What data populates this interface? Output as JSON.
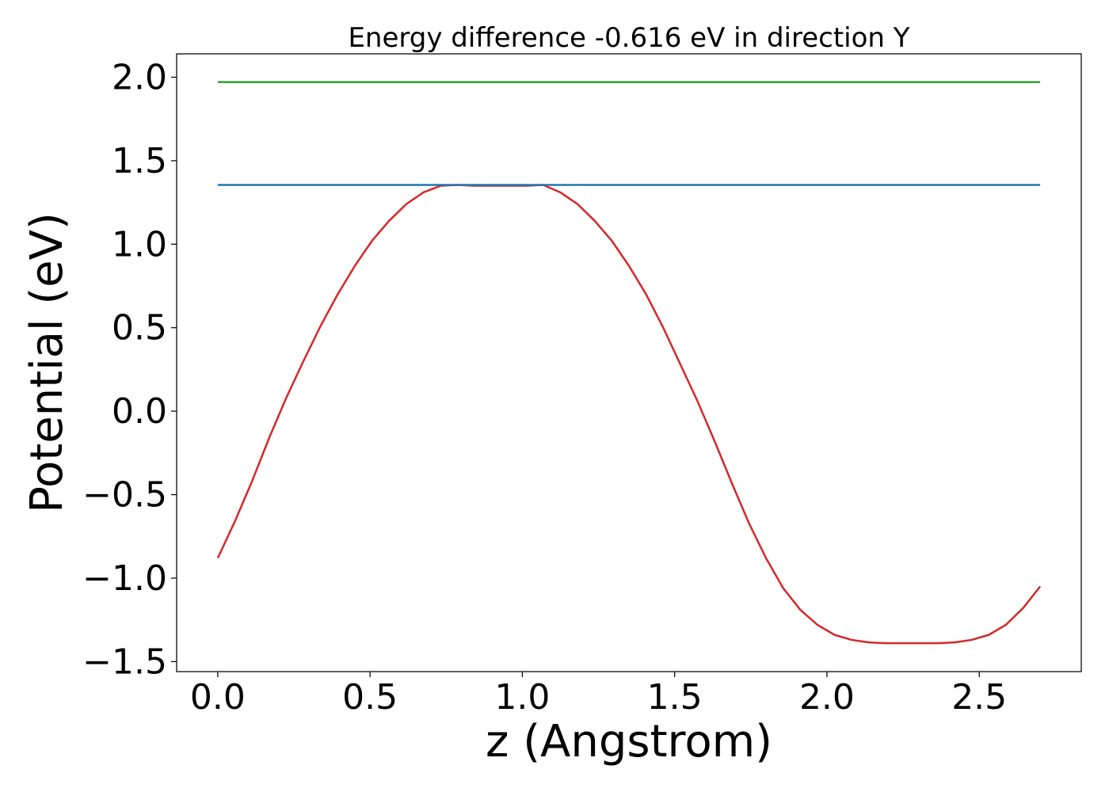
{
  "chart_data": {
    "type": "line",
    "title": "Energy difference -0.616 eV in direction Y",
    "xlabel": "z (Angstrom)",
    "ylabel": "Potential (eV)",
    "xlim": [
      -0.135,
      2.835
    ],
    "ylim": [
      -1.56,
      2.14
    ],
    "xticks": [
      0.0,
      0.5,
      1.0,
      1.5,
      2.0,
      2.5
    ],
    "xtick_labels": [
      "0.0",
      "0.5",
      "1.0",
      "1.5",
      "2.0",
      "2.5"
    ],
    "yticks": [
      -1.5,
      -1.0,
      -0.5,
      0.0,
      0.5,
      1.0,
      1.5,
      2.0
    ],
    "ytick_labels": [
      "−1.5",
      "−1.0",
      "−0.5",
      "0.0",
      "0.5",
      "1.0",
      "1.5",
      "2.0"
    ],
    "grid": false,
    "series": [
      {
        "color": "#d62728",
        "x": [
          0.0,
          0.0563,
          0.1125,
          0.1688,
          0.225,
          0.2813,
          0.3375,
          0.3938,
          0.45,
          0.5063,
          0.5625,
          0.6188,
          0.675,
          0.7313,
          0.7875,
          0.8438,
          0.9,
          0.9563,
          1.0125,
          1.0688,
          1.125,
          1.1813,
          1.2375,
          1.2938,
          1.35,
          1.4063,
          1.4625,
          1.5188,
          1.575,
          1.6313,
          1.6875,
          1.7438,
          1.8,
          1.8563,
          1.9125,
          1.9688,
          2.025,
          2.0813,
          2.1375,
          2.1938,
          2.25,
          2.3063,
          2.3625,
          2.4188,
          2.475,
          2.5313,
          2.5875,
          2.6438,
          2.7
        ],
        "values": [
          -0.88,
          -0.66,
          -0.42,
          -0.16,
          0.08,
          0.3,
          0.51,
          0.7,
          0.87,
          1.02,
          1.14,
          1.24,
          1.31,
          1.35,
          1.355,
          1.35,
          1.35,
          1.35,
          1.35,
          1.355,
          1.31,
          1.24,
          1.14,
          1.02,
          0.87,
          0.7,
          0.5,
          0.28,
          0.06,
          -0.18,
          -0.43,
          -0.67,
          -0.88,
          -1.06,
          -1.19,
          -1.28,
          -1.34,
          -1.37,
          -1.385,
          -1.39,
          -1.39,
          -1.39,
          -1.39,
          -1.385,
          -1.37,
          -1.34,
          -1.28,
          -1.18,
          -1.05
        ]
      },
      {
        "color": "#1f77b4",
        "x": [
          0.0,
          2.7
        ],
        "values": [
          1.355,
          1.355
        ]
      },
      {
        "color": "#2ca02c",
        "x": [
          0.0,
          2.7
        ],
        "values": [
          1.971,
          1.971
        ]
      }
    ]
  }
}
